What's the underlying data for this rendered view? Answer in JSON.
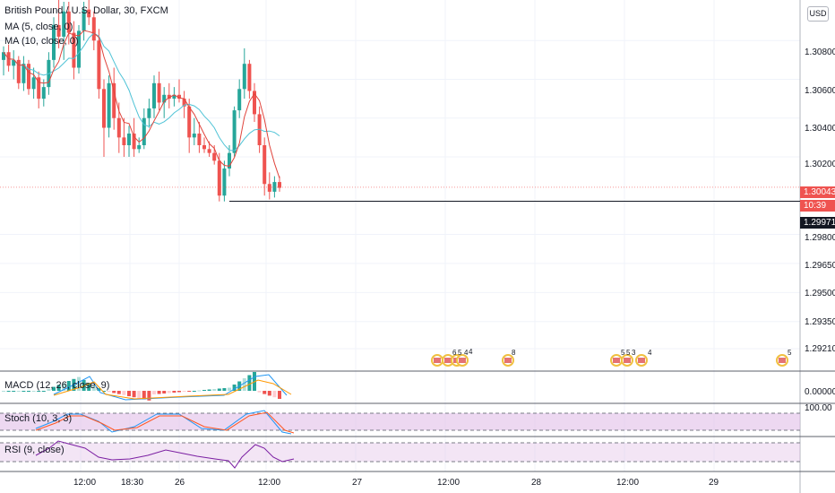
{
  "chart": {
    "title": "British Pound / U.S. Dollar, 30, FXCM",
    "ma1_label": "MA (5, close, 0)",
    "ma2_label": "MA (10, close, 0)",
    "currency_button": "USD",
    "price_labels": [
      "1.30800",
      "1.30600",
      "1.30400",
      "1.30200",
      "1.29800",
      "1.29650",
      "1.29500",
      "1.29350",
      "1.29210"
    ],
    "current_price": "1.30043",
    "countdown": "10:39",
    "line_price": "1.29971",
    "time_labels": [
      "12:00",
      "18:30",
      "26",
      "12:00",
      "27",
      "12:00",
      "28",
      "12:00",
      "29"
    ],
    "events": [
      "6",
      "5",
      "4",
      "4",
      "8",
      "5",
      "5",
      "3",
      "4",
      "5"
    ]
  },
  "macd": {
    "label": "MACD (12, 26, close, 9)",
    "axis_label": "0.00000"
  },
  "stoch": {
    "label": "Stoch (10, 3, 3)",
    "axis_label": "100.00"
  },
  "rsi": {
    "label": "RSI (9, close)"
  },
  "colors": {
    "up": "#26a69a",
    "down": "#ef5350",
    "ma1": "#e0443c",
    "ma2": "#4fc3d6",
    "osc_fill": "#e1bee7",
    "rsi_line": "#7b1fa2"
  },
  "chart_data": {
    "type": "candlestick",
    "title": "British Pound / U.S. Dollar, 30, FXCM",
    "ylim": [
      1.2915,
      1.31
    ],
    "ohlc": [
      [
        1.307,
        1.3077,
        1.3062,
        1.3074
      ],
      [
        1.3074,
        1.3078,
        1.3064,
        1.3067
      ],
      [
        1.3067,
        1.3075,
        1.306,
        1.307
      ],
      [
        1.307,
        1.3072,
        1.3055,
        1.3058
      ],
      [
        1.3058,
        1.3072,
        1.3054,
        1.3068
      ],
      [
        1.3068,
        1.307,
        1.3052,
        1.3055
      ],
      [
        1.3055,
        1.3066,
        1.305,
        1.3061
      ],
      [
        1.3061,
        1.3064,
        1.3045,
        1.305
      ],
      [
        1.305,
        1.306,
        1.3046,
        1.3056
      ],
      [
        1.3056,
        1.3074,
        1.3052,
        1.307
      ],
      [
        1.307,
        1.3092,
        1.3066,
        1.3088
      ],
      [
        1.3088,
        1.3102,
        1.3076,
        1.3082
      ],
      [
        1.3082,
        1.31,
        1.307,
        1.3095
      ],
      [
        1.3095,
        1.31,
        1.3078,
        1.3084
      ],
      [
        1.3084,
        1.309,
        1.306,
        1.3066
      ],
      [
        1.3066,
        1.3088,
        1.3063,
        1.3085
      ],
      [
        1.3085,
        1.31,
        1.308,
        1.3096
      ],
      [
        1.3096,
        1.3102,
        1.3088,
        1.3092
      ],
      [
        1.3092,
        1.3095,
        1.3075,
        1.308
      ],
      [
        1.308,
        1.3086,
        1.305,
        1.3055
      ],
      [
        1.3055,
        1.306,
        1.302,
        1.3035
      ],
      [
        1.3035,
        1.3062,
        1.303,
        1.3058
      ],
      [
        1.3058,
        1.3066,
        1.3034,
        1.304
      ],
      [
        1.304,
        1.3048,
        1.3022,
        1.303
      ],
      [
        1.303,
        1.304,
        1.302,
        1.3026
      ],
      [
        1.3026,
        1.3036,
        1.302,
        1.3032
      ],
      [
        1.3032,
        1.304,
        1.302,
        1.3024
      ],
      [
        1.3024,
        1.303,
        1.3022,
        1.3026
      ],
      [
        1.3026,
        1.3045,
        1.3024,
        1.304
      ],
      [
        1.304,
        1.305,
        1.3035,
        1.3045
      ],
      [
        1.3045,
        1.3062,
        1.304,
        1.3058
      ],
      [
        1.3058,
        1.3064,
        1.3044,
        1.3048
      ],
      [
        1.3048,
        1.3056,
        1.304,
        1.3052
      ],
      [
        1.3052,
        1.3058,
        1.3045,
        1.305
      ],
      [
        1.305,
        1.3056,
        1.3046,
        1.3052
      ],
      [
        1.3052,
        1.306,
        1.3048,
        1.305
      ],
      [
        1.305,
        1.3054,
        1.304,
        1.3046
      ],
      [
        1.3046,
        1.305,
        1.3022,
        1.303
      ],
      [
        1.303,
        1.304,
        1.3026,
        1.3032
      ],
      [
        1.3032,
        1.3038,
        1.3022,
        1.3026
      ],
      [
        1.3026,
        1.303,
        1.3022,
        1.3024
      ],
      [
        1.3024,
        1.3028,
        1.302,
        1.3022
      ],
      [
        1.3022,
        1.3026,
        1.3016,
        1.3018
      ],
      [
        1.3018,
        1.3022,
        1.2997,
        1.3
      ],
      [
        1.3,
        1.3018,
        1.2997,
        1.3014
      ],
      [
        1.3014,
        1.3026,
        1.301,
        1.3022
      ],
      [
        1.3022,
        1.3046,
        1.302,
        1.3044
      ],
      [
        1.3044,
        1.306,
        1.304,
        1.3055
      ],
      [
        1.3055,
        1.3076,
        1.305,
        1.3068
      ],
      [
        1.3068,
        1.307,
        1.305,
        1.3054
      ],
      [
        1.3054,
        1.3058,
        1.3038,
        1.3042
      ],
      [
        1.3042,
        1.3046,
        1.3022,
        1.3026
      ],
      [
        1.3026,
        1.303,
        1.3,
        1.3006
      ],
      [
        1.3006,
        1.3012,
        1.2998,
        1.3002
      ],
      [
        1.3002,
        1.301,
        1.2999,
        1.3007
      ],
      [
        1.3007,
        1.301,
        1.3002,
        1.3004
      ]
    ],
    "current_price": 1.30043,
    "line_price": 1.29971
  }
}
